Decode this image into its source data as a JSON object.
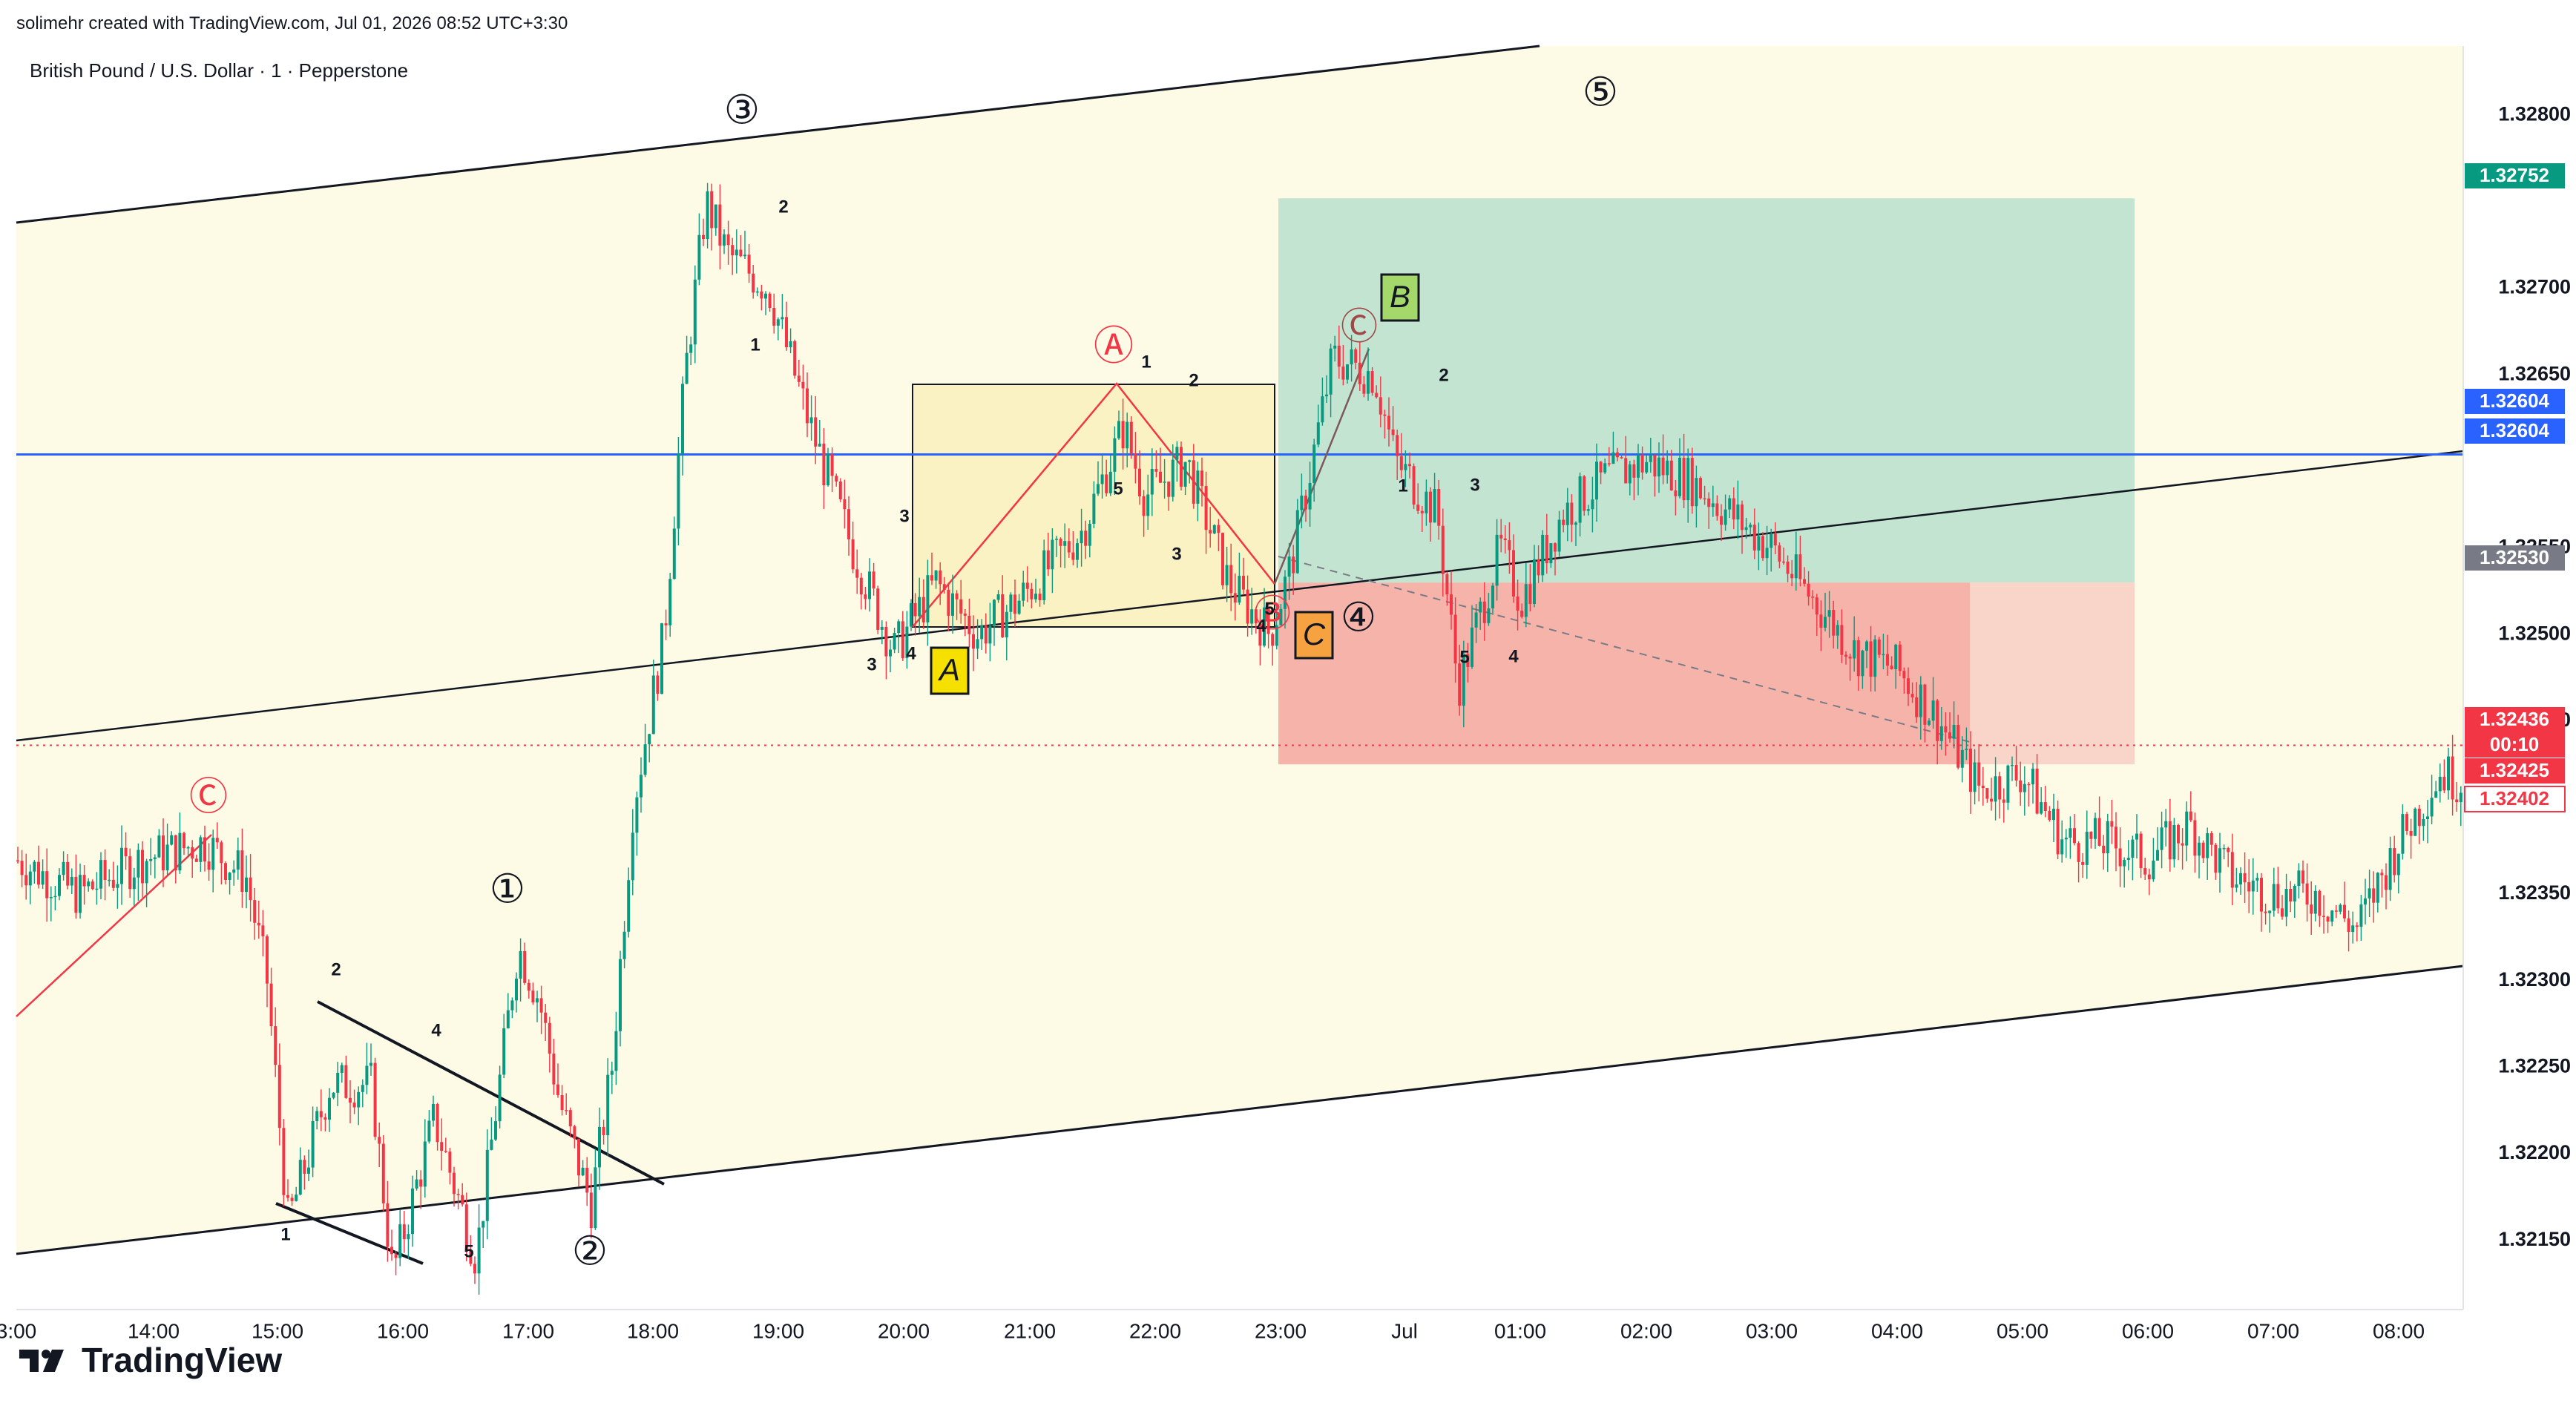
{
  "header": {
    "credit": "solimehr created with TradingView.com, Jul 01, 2026 08:52 UTC+3:30"
  },
  "symbol": {
    "title": "British Pound / U.S. Dollar · 1 · Pepperstone"
  },
  "footer": {
    "brand": "TradingView",
    "logo_icon": "tradingview-logo-icon"
  },
  "colors": {
    "background_zone": "#fdfae6",
    "profit_zone": "#c4e4d2",
    "loss_zone": "#f5b3aa",
    "loss_zone_light": "#f9d4c9",
    "box_fill": "#fbf2c4",
    "horizontal_line": "#2962ff",
    "bull_candle": "#089981",
    "bear_candle": "#f23645",
    "wave_red": "#f23645",
    "label_A_bg": "#f5e000",
    "label_B_bg": "#a5d86b",
    "label_C_bg": "#f7a240"
  },
  "chart_data": {
    "type": "candlestick",
    "symbol": "GBPUSD",
    "interval": "1",
    "y_range": [
      1.3211,
      1.3284
    ],
    "y_ticks": [
      "1.32800",
      "1.32700",
      "1.32650",
      "1.32550",
      "1.32500",
      "1.32450",
      "1.32350",
      "1.32300",
      "1.32250",
      "1.32200",
      "1.32150"
    ],
    "x_ticks": [
      "3:00",
      "14:00",
      "15:00",
      "16:00",
      "17:00",
      "18:00",
      "19:00",
      "20:00",
      "21:00",
      "22:00",
      "23:00",
      "Jul",
      "01:00",
      "02:00",
      "03:00",
      "04:00",
      "05:00",
      "06:00",
      "07:00",
      "08:00"
    ],
    "price_tags": [
      {
        "value": "1.32752",
        "color": "#089981"
      },
      {
        "value": "1.32604",
        "color": "#2962ff"
      },
      {
        "value": "1.32604",
        "color": "#2962ff"
      },
      {
        "value": "1.32530",
        "color": "#787b86"
      },
      {
        "value": "1.32436",
        "color": "#f23645"
      },
      {
        "value": "00:10",
        "color": "#f23645"
      },
      {
        "value": "1.32425",
        "color": "#f23645"
      },
      {
        "value": "1.32402",
        "color": "#ffffff"
      }
    ],
    "close_path": [
      [
        "13:00",
        1.3237
      ],
      [
        "13:30",
        1.3235
      ],
      [
        "14:00",
        1.3237
      ],
      [
        "14:30",
        1.3238
      ],
      [
        "14:50",
        1.3236
      ],
      [
        "15:00",
        1.323
      ],
      [
        "15:10",
        1.3216
      ],
      [
        "15:30",
        1.3224
      ],
      [
        "15:50",
        1.3224
      ],
      [
        "16:00",
        1.3213
      ],
      [
        "16:20",
        1.3222
      ],
      [
        "16:40",
        1.3214
      ],
      [
        "16:50",
        1.3223
      ],
      [
        "17:00",
        1.3232
      ],
      [
        "17:10",
        1.3229
      ],
      [
        "17:20",
        1.3223
      ],
      [
        "17:35",
        1.3217
      ],
      [
        "17:45",
        1.3225
      ],
      [
        "17:55",
        1.324
      ],
      [
        "18:10",
        1.325
      ],
      [
        "18:20",
        1.3265
      ],
      [
        "18:30",
        1.3275
      ],
      [
        "18:40",
        1.3272
      ],
      [
        "19:00",
        1.327
      ],
      [
        "19:20",
        1.3262
      ],
      [
        "19:40",
        1.3255
      ],
      [
        "20:00",
        1.3249
      ],
      [
        "20:20",
        1.3253
      ],
      [
        "20:40",
        1.325
      ],
      [
        "21:00",
        1.3252
      ],
      [
        "21:30",
        1.3256
      ],
      [
        "21:50",
        1.3262
      ],
      [
        "22:00",
        1.3258
      ],
      [
        "22:20",
        1.326
      ],
      [
        "22:40",
        1.3253
      ],
      [
        "23:00",
        1.325
      ],
      [
        "23:10",
        1.3254
      ],
      [
        "23:30",
        1.3266
      ],
      [
        "23:50",
        1.3265
      ],
      [
        "00:00",
        1.326
      ],
      [
        "00:20",
        1.3257
      ],
      [
        "00:30",
        1.3247
      ],
      [
        "00:50",
        1.3255
      ],
      [
        "01:00",
        1.3252
      ],
      [
        "01:20",
        1.3257
      ],
      [
        "01:40",
        1.3259
      ],
      [
        "02:00",
        1.326
      ],
      [
        "02:20",
        1.3259
      ],
      [
        "02:40",
        1.3257
      ],
      [
        "03:00",
        1.3255
      ],
      [
        "03:20",
        1.3252
      ],
      [
        "03:40",
        1.3249
      ],
      [
        "04:00",
        1.3248
      ],
      [
        "04:20",
        1.3245
      ],
      [
        "04:40",
        1.3241
      ],
      [
        "05:00",
        1.3242
      ],
      [
        "05:20",
        1.3238
      ],
      [
        "05:40",
        1.3238
      ],
      [
        "06:00",
        1.3237
      ],
      [
        "06:20",
        1.3239
      ],
      [
        "06:40",
        1.3236
      ],
      [
        "07:00",
        1.3235
      ],
      [
        "07:20",
        1.3235
      ],
      [
        "07:40",
        1.3233
      ],
      [
        "08:00",
        1.3238
      ],
      [
        "08:20",
        1.3242
      ],
      [
        "08:40",
        1.3241
      ]
    ],
    "horizontal_level": 1.32604,
    "entry_level": 1.3253,
    "target_level": 1.32752,
    "stop_level": 1.32425,
    "wave_labels_major": [
      "①",
      "②",
      "③",
      "④",
      "⑤"
    ],
    "wave_labels_abc_circle": [
      "Ⓐ",
      "Ⓑ",
      "Ⓒ",
      "Ⓒ"
    ],
    "wave_labels_box": [
      "A",
      "B",
      "C"
    ],
    "wave_labels_minor": [
      "1",
      "2",
      "3",
      "4",
      "5",
      "1",
      "2",
      "3",
      "4",
      "5",
      "1",
      "2",
      "3",
      "4",
      "5",
      "1",
      "2",
      "3",
      "4",
      "5",
      "1",
      "2",
      "4",
      "3",
      "5"
    ]
  }
}
